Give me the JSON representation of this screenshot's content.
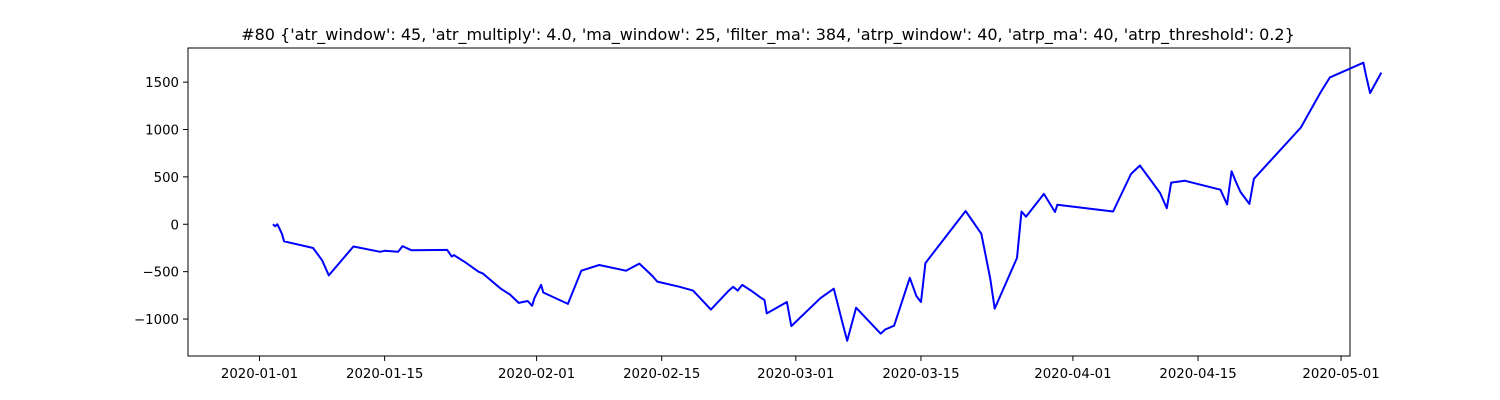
{
  "chart_data": {
    "type": "line",
    "title": "#80 {'atr_window': 45, 'atr_multiply': 4.0, 'ma_window': 25, 'filter_ma': 384, 'atrp_window': 40, 'atrp_ma': 40, 'atrp_threshold': 0.2}",
    "xlabel": "",
    "ylabel": "",
    "x_type": "date",
    "xlim": [
      "2019-12-24",
      "2020-05-02"
    ],
    "ylim": [
      -1390,
      1860
    ],
    "grid": false,
    "line_color": "#0000ff",
    "x_ticks": [
      {
        "value": "2020-01-01",
        "label": "2020-01-01"
      },
      {
        "value": "2020-01-15",
        "label": "2020-01-15"
      },
      {
        "value": "2020-02-01",
        "label": "2020-02-01"
      },
      {
        "value": "2020-02-15",
        "label": "2020-02-15"
      },
      {
        "value": "2020-03-01",
        "label": "2020-03-01"
      },
      {
        "value": "2020-03-15",
        "label": "2020-03-15"
      },
      {
        "value": "2020-04-01",
        "label": "2020-04-01"
      },
      {
        "value": "2020-04-15",
        "label": "2020-04-15"
      },
      {
        "value": "2020-05-01",
        "label": "2020-05-01"
      }
    ],
    "y_ticks": [
      {
        "value": 1500,
        "label": "1500"
      },
      {
        "value": 1000,
        "label": "1000"
      },
      {
        "value": 500,
        "label": "500"
      },
      {
        "value": 0,
        "label": "0"
      },
      {
        "value": -500,
        "label": "−500"
      },
      {
        "value": -1000,
        "label": "−1000"
      }
    ],
    "series": [
      {
        "points": [
          [
            "2020-01-02 12:00",
            0
          ],
          [
            "2020-01-02 18:00",
            -20
          ],
          [
            "2020-01-03 00:00",
            0
          ],
          [
            "2020-01-03 12:00",
            -100
          ],
          [
            "2020-01-03 18:00",
            -180
          ],
          [
            "2020-01-07 00:00",
            -250
          ],
          [
            "2020-01-08 00:00",
            -380
          ],
          [
            "2020-01-08 18:00",
            -540
          ],
          [
            "2020-01-11 12:00",
            -235
          ],
          [
            "2020-01-14 12:00",
            -290
          ],
          [
            "2020-01-15 00:00",
            -280
          ],
          [
            "2020-01-16 12:00",
            -290
          ],
          [
            "2020-01-17 00:00",
            -230
          ],
          [
            "2020-01-18 00:00",
            -275
          ],
          [
            "2020-01-22 00:00",
            -270
          ],
          [
            "2020-01-22 12:00",
            -340
          ],
          [
            "2020-01-22 18:00",
            -325
          ],
          [
            "2020-01-24 00:00",
            -400
          ],
          [
            "2020-01-25 12:00",
            -500
          ],
          [
            "2020-01-26 00:00",
            -520
          ],
          [
            "2020-01-28 00:00",
            -680
          ],
          [
            "2020-01-29 00:00",
            -740
          ],
          [
            "2020-01-30 00:00",
            -830
          ],
          [
            "2020-01-31 00:00",
            -810
          ],
          [
            "2020-01-31 12:00",
            -860
          ],
          [
            "2020-01-31 18:00",
            -780
          ],
          [
            "2020-02-01 12:00",
            -640
          ],
          [
            "2020-02-01 18:00",
            -720
          ],
          [
            "2020-02-04 12:00",
            -840
          ],
          [
            "2020-02-06 00:00",
            -490
          ],
          [
            "2020-02-08 00:00",
            -430
          ],
          [
            "2020-02-11 00:00",
            -490
          ],
          [
            "2020-02-12 12:00",
            -415
          ],
          [
            "2020-02-14 00:00",
            -550
          ],
          [
            "2020-02-14 12:00",
            -605
          ],
          [
            "2020-02-17 00:00",
            -660
          ],
          [
            "2020-02-18 12:00",
            -700
          ],
          [
            "2020-02-19 12:00",
            -800
          ],
          [
            "2020-02-20 12:00",
            -900
          ],
          [
            "2020-02-22 12:00",
            -700
          ],
          [
            "2020-02-23 00:00",
            -660
          ],
          [
            "2020-02-23 12:00",
            -700
          ],
          [
            "2020-02-24 00:00",
            -640
          ],
          [
            "2020-02-25 00:00",
            -700
          ],
          [
            "2020-02-26 00:00",
            -770
          ],
          [
            "2020-02-26 12:00",
            -800
          ],
          [
            "2020-02-26 18:00",
            -940
          ],
          [
            "2020-02-29 00:00",
            -820
          ],
          [
            "2020-02-29 12:00",
            -1075
          ],
          [
            "2020-03-03 18:00",
            -780
          ],
          [
            "2020-03-05 06:00",
            -680
          ],
          [
            "2020-03-06 06:00",
            -1050
          ],
          [
            "2020-03-06 18:00",
            -1230
          ],
          [
            "2020-03-07 18:00",
            -880
          ],
          [
            "2020-03-10 12:00",
            -1155
          ],
          [
            "2020-03-11 00:00",
            -1110
          ],
          [
            "2020-03-12 00:00",
            -1070
          ],
          [
            "2020-03-13 18:00",
            -565
          ],
          [
            "2020-03-14 12:00",
            -760
          ],
          [
            "2020-03-15 00:00",
            -820
          ],
          [
            "2020-03-15 12:00",
            -410
          ],
          [
            "2020-03-20 00:00",
            140
          ],
          [
            "2020-03-21 18:00",
            -100
          ],
          [
            "2020-03-22 18:00",
            -570
          ],
          [
            "2020-03-23 06:00",
            -890
          ],
          [
            "2020-03-25 18:00",
            -355
          ],
          [
            "2020-03-26 06:00",
            135
          ],
          [
            "2020-03-26 18:00",
            80
          ],
          [
            "2020-03-28 18:00",
            320
          ],
          [
            "2020-03-30 00:00",
            130
          ],
          [
            "2020-03-30 06:00",
            205
          ],
          [
            "2020-04-05 12:00",
            135
          ],
          [
            "2020-04-07 12:00",
            530
          ],
          [
            "2020-04-08 12:00",
            620
          ],
          [
            "2020-04-10 18:00",
            330
          ],
          [
            "2020-04-11 12:00",
            170
          ],
          [
            "2020-04-12 00:00",
            440
          ],
          [
            "2020-04-13 12:00",
            460
          ],
          [
            "2020-04-17 12:00",
            365
          ],
          [
            "2020-04-18 06:00",
            210
          ],
          [
            "2020-04-18 18:00",
            560
          ],
          [
            "2020-04-19 06:00",
            445
          ],
          [
            "2020-04-19 18:00",
            340
          ],
          [
            "2020-04-20 18:00",
            215
          ],
          [
            "2020-04-21 06:00",
            480
          ],
          [
            "2020-04-26 12:00",
            1020
          ],
          [
            "2020-04-28 18:00",
            1400
          ],
          [
            "2020-04-29 18:00",
            1550
          ],
          [
            "2020-05-03 12:00",
            1705
          ],
          [
            "2020-05-03 18:00",
            1590
          ],
          [
            "2020-05-04 06:00",
            1385
          ],
          [
            "2020-05-05 12:00",
            1600
          ]
        ]
      }
    ]
  }
}
